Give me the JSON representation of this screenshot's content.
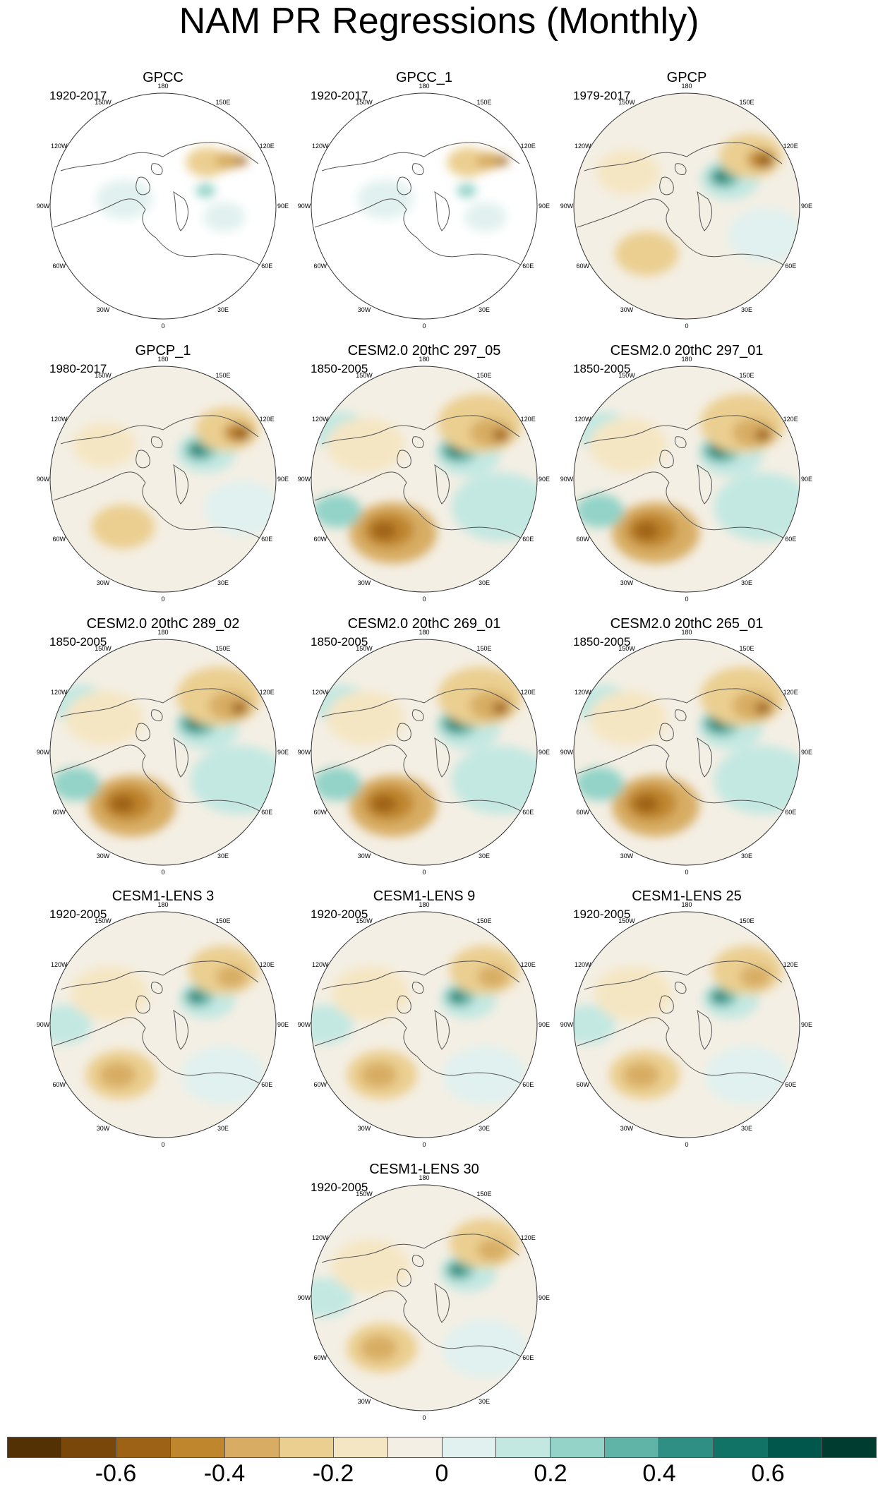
{
  "title": "NAM PR Regressions (Monthly)",
  "lon_labels": [
    "180",
    "150E",
    "120E",
    "90E",
    "60E",
    "30E",
    "0",
    "30W",
    "60W",
    "90W",
    "120W",
    "150W"
  ],
  "panels": [
    {
      "title": "GPCC",
      "period": "1920-2017",
      "kind": "gpcc"
    },
    {
      "title": "GPCC_1",
      "period": "1920-2017",
      "kind": "gpcc"
    },
    {
      "title": "GPCP",
      "period": "1979-2017",
      "kind": "gpcp"
    },
    {
      "title": "GPCP_1",
      "period": "1980-2017",
      "kind": "gpcp"
    },
    {
      "title": "CESM2.0 20thC 297_05",
      "period": "1850-2005",
      "kind": "model"
    },
    {
      "title": "CESM2.0 20thC 297_01",
      "period": "1850-2005",
      "kind": "model"
    },
    {
      "title": "CESM2.0 20thC 289_02",
      "period": "1850-2005",
      "kind": "model"
    },
    {
      "title": "CESM2.0 20thC 269_01",
      "period": "1850-2005",
      "kind": "model"
    },
    {
      "title": "CESM2.0 20thC 265_01",
      "period": "1850-2005",
      "kind": "model"
    },
    {
      "title": "CESM1-LENS 3",
      "period": "1920-2005",
      "kind": "lens"
    },
    {
      "title": "CESM1-LENS 9",
      "period": "1920-2005",
      "kind": "lens"
    },
    {
      "title": "CESM1-LENS 25",
      "period": "1920-2005",
      "kind": "lens"
    },
    {
      "title": "CESM1-LENS 30",
      "period": "1920-2005",
      "kind": "lens"
    }
  ],
  "colorbar": {
    "colors": [
      "#543005",
      "#7a470a",
      "#9d6215",
      "#c0862e",
      "#d8ad63",
      "#ebcf91",
      "#f5e6c3",
      "#f4efe4",
      "#e1f1ef",
      "#c3e8e2",
      "#93d3c8",
      "#5fb3a7",
      "#2f8f85",
      "#117366",
      "#01574b",
      "#003c30"
    ],
    "tick_labels": [
      "-0.6",
      "-0.4",
      "-0.2",
      "0",
      "0.2",
      "0.4",
      "0.6"
    ]
  }
}
